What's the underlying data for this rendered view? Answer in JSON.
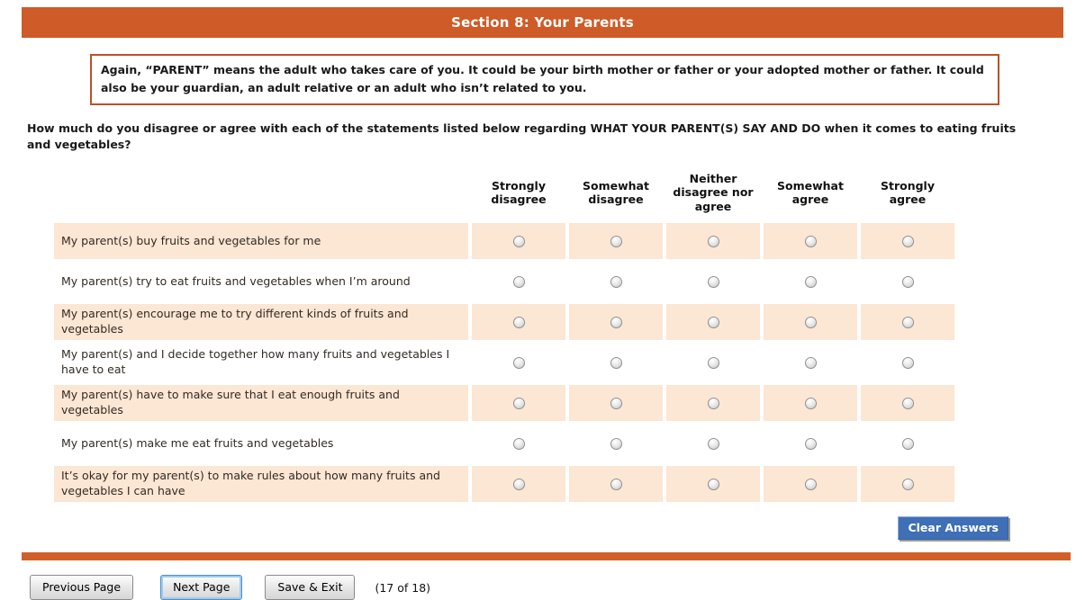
{
  "header": {
    "title": "Section 8: Your Parents"
  },
  "info_box": {
    "text": "Again, “PARENT” means the adult who takes care of you. It could be your birth mother or father or your adopted mother or father. It could also be your guardian, an adult relative or an adult who isn’t related to you."
  },
  "question": {
    "text": "How much do you disagree or agree with each of the statements listed below regarding WHAT YOUR PARENT(S) SAY AND DO when it comes to eating fruits and vegetables?"
  },
  "matrix": {
    "columns": [
      "Strongly disagree",
      "Somewhat disagree",
      "Neither disagree nor agree",
      "Somewhat agree",
      "Strongly agree"
    ],
    "rows": [
      {
        "label": "My parent(s) buy fruits and vegetables for me",
        "selected": null
      },
      {
        "label": "My parent(s) try to eat fruits and vegetables when I’m around",
        "selected": null
      },
      {
        "label": "My parent(s) encourage me to try different kinds of fruits and vegetables",
        "selected": null
      },
      {
        "label": "My parent(s) and I decide together how many fruits and vegetables I have to eat",
        "selected": null
      },
      {
        "label": "My parent(s) have to make sure that I eat enough fruits and vegetables",
        "selected": null
      },
      {
        "label": "My parent(s) make me eat fruits and vegetables",
        "selected": null
      },
      {
        "label": "It’s okay for my parent(s) to make rules about how many fruits and vegetables I can have",
        "selected": null
      }
    ]
  },
  "buttons": {
    "clear": "Clear Answers",
    "previous": "Previous Page",
    "next": "Next Page",
    "save_exit": "Save & Exit"
  },
  "pagination": {
    "text": "(17 of 18)"
  },
  "colors": {
    "banner_orange": "#CE5B28",
    "divider_orange": "#D15F28",
    "info_border": "#BC5127",
    "row_peach": "#FCE6D4",
    "clear_button_blue": "#3E6FB7"
  }
}
